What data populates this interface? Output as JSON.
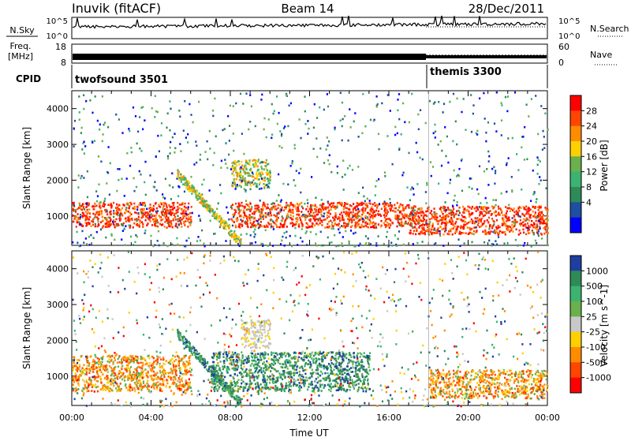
{
  "header": {
    "station": "Inuvik (fitACF)",
    "beam": "Beam 14",
    "date": "28/Dec/2011"
  },
  "noise_panel": {
    "left_label": "N.Sky",
    "left_ticks": [
      "10^5",
      "10^0"
    ],
    "right_ticks": [
      "10^5",
      "10^0"
    ],
    "right_label": "N.Search"
  },
  "freq_panel": {
    "left_label_1": "Freq.",
    "left_label_2": "[MHz]",
    "left_ticks": [
      "18",
      "8"
    ],
    "right_ticks": [
      "60",
      "0"
    ],
    "right_label": "Nave"
  },
  "cpid_panel": {
    "label": "CPID",
    "modes": [
      {
        "name": "twofsound 3501",
        "start_hour": 0
      },
      {
        "name": "themis 3300",
        "start_hour": 18
      }
    ]
  },
  "chart_data": [
    {
      "type": "heatmap",
      "title": "",
      "ylabel": "Slant Range [km]",
      "xlabel": "",
      "xlim_hours": [
        0,
        24
      ],
      "ylim": [
        180,
        4500
      ],
      "y_ticks": [
        1000,
        2000,
        3000,
        4000
      ],
      "colorbar": {
        "label": "Power [dB]",
        "ticks": [
          "28",
          "24",
          "20",
          "16",
          "12",
          "8",
          "4"
        ],
        "colors": [
          "#ff0000",
          "#ff4500",
          "#ff8c00",
          "#ffd000",
          "#6ab04c",
          "#3cb371",
          "#2e8b57",
          "#1f4fa0",
          "#0000ff"
        ]
      },
      "bands": [
        {
          "t0": 0,
          "t1": 6,
          "r0": 700,
          "r1": 1400,
          "level": "high"
        },
        {
          "t0": 8,
          "t1": 17,
          "r0": 700,
          "r1": 1400,
          "level": "high"
        },
        {
          "t0": 17,
          "t1": 24,
          "r0": 500,
          "r1": 1300,
          "level": "high"
        },
        {
          "t0": 8,
          "t1": 10,
          "r0": 1800,
          "r1": 2600,
          "level": "mid"
        }
      ]
    },
    {
      "type": "heatmap",
      "title": "",
      "ylabel": "Slant Range [km]",
      "xlabel": "Time UT",
      "xlim_hours": [
        0,
        24
      ],
      "ylim": [
        180,
        4500
      ],
      "y_ticks": [
        1000,
        2000,
        3000,
        4000
      ],
      "x_ticks": [
        "00:00",
        "04:00",
        "08:00",
        "12:00",
        "16:00",
        "20:00",
        "00:00"
      ],
      "colorbar": {
        "label": "Velocity [m s^-1]",
        "ticks": [
          "1000",
          "500",
          "100",
          "25",
          "-25",
          "-100",
          "-500",
          "-1000"
        ],
        "colors": [
          "#1f3fa0",
          "#2e8b57",
          "#3cb371",
          "#6ab04c",
          "#c8c8c8",
          "#ffd000",
          "#ff8c00",
          "#ff4500",
          "#ff0000"
        ]
      },
      "bands": [
        {
          "t0": 0,
          "t1": 6,
          "r0": 600,
          "r1": 1600,
          "level": "negative"
        },
        {
          "t0": 7,
          "t1": 15,
          "r0": 600,
          "r1": 1700,
          "level": "positive"
        },
        {
          "t0": 8.5,
          "t1": 10,
          "r0": 1800,
          "r1": 2600,
          "level": "zero"
        },
        {
          "t0": 18,
          "t1": 24,
          "r0": 400,
          "r1": 1200,
          "level": "negative"
        }
      ]
    }
  ]
}
